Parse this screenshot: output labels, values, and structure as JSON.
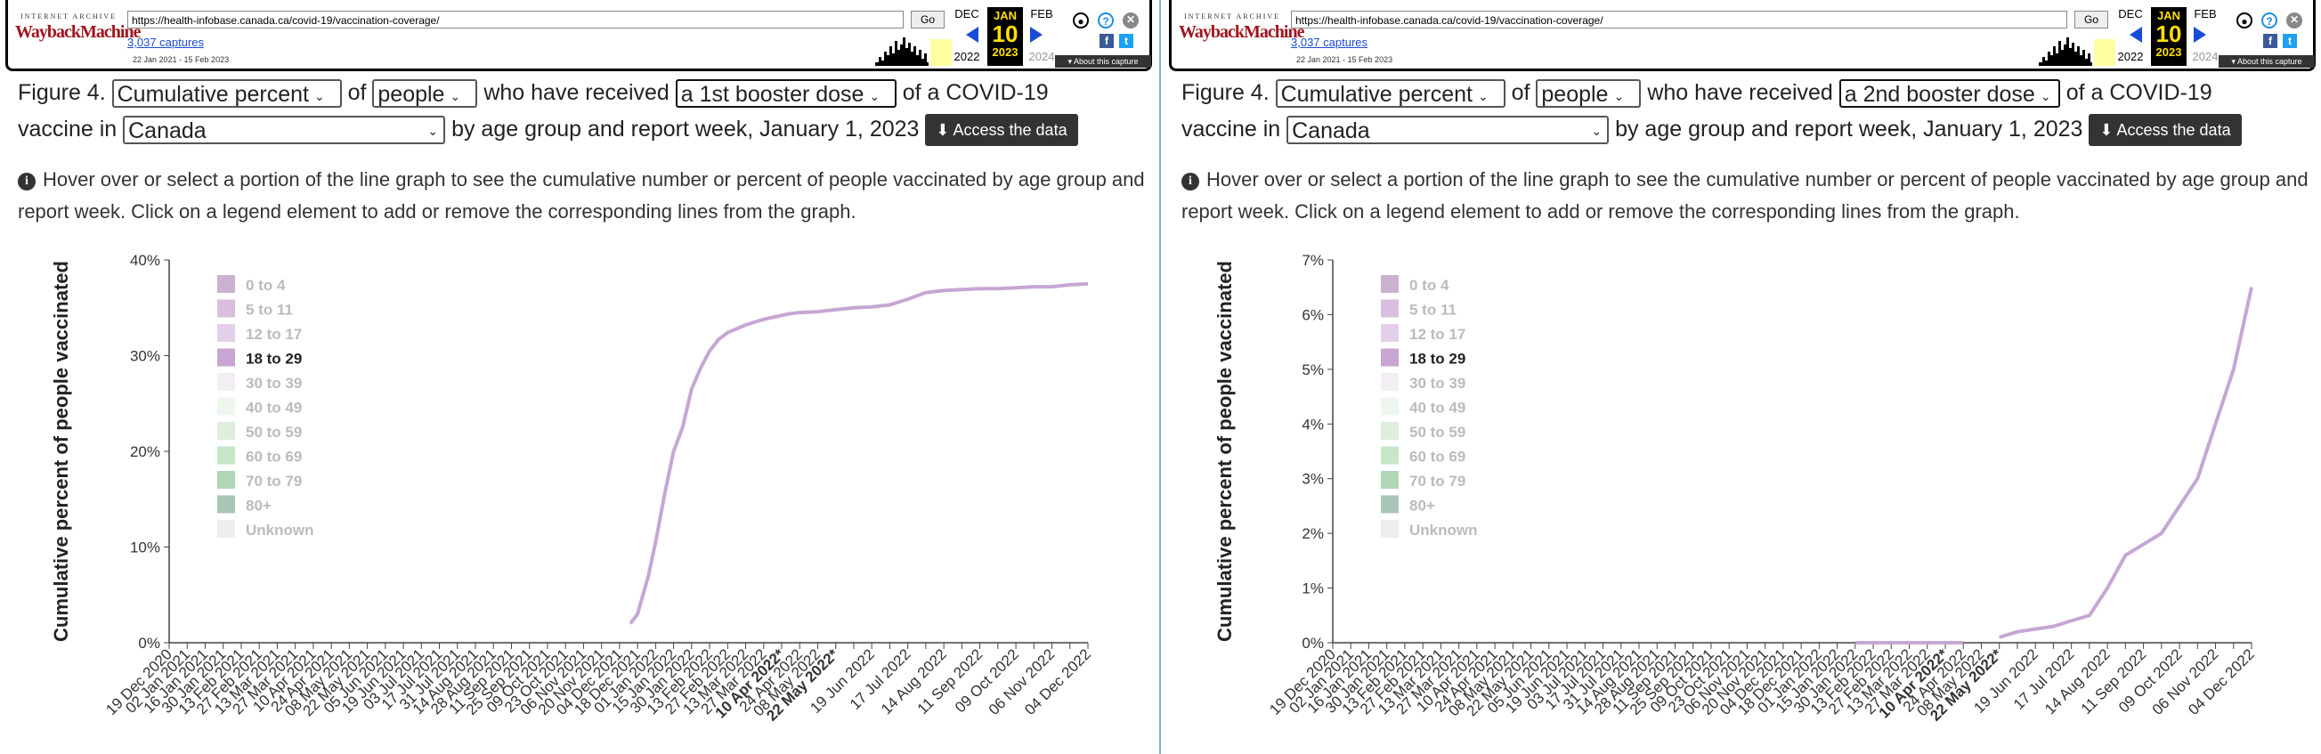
{
  "wayback": {
    "logo_top": "INTERNET ARCHIVE",
    "logo_main": "WaybackMachine",
    "url": "https://health-infobase.canada.ca/covid-19/vaccination-coverage/",
    "go_label": "Go",
    "captures": "3,037 captures",
    "range": "22 Jan 2021 - 15 Feb 2023",
    "prev_month": "DEC",
    "cur_month": "JAN",
    "next_month": "FEB",
    "cur_day": "10",
    "prev_year": "2022",
    "cur_year": "2023",
    "next_year": "2024",
    "about": "About this capture",
    "fb_icon": "facebook-icon",
    "tw_icon": "twitter-icon"
  },
  "figure": {
    "label": "Figure 4.",
    "measure": "Cumulative percent",
    "of_word": "of",
    "population": "people",
    "received_text": "who have received",
    "of_vaccine_text": "of a COVID-19",
    "vaccine_in": "vaccine in",
    "region": "Canada",
    "by_text": "by age group and report week, January 1, 2023",
    "access_button": "Access the data",
    "info_text": "Hover over or select a portion of the line graph to see the cumulative number or percent of people vaccinated by age group and report week. Click on a legend element to add or remove the corresponding lines from the graph."
  },
  "legend": [
    {
      "label": "0 to 4",
      "color": "#c9b3cf",
      "active": false
    },
    {
      "label": "5 to 11",
      "color": "#d8bfdf",
      "active": false
    },
    {
      "label": "12 to 17",
      "color": "#e4cfe8",
      "active": false
    },
    {
      "label": "18 to 29",
      "color": "#c7a6d3",
      "active": true
    },
    {
      "label": "30 to 39",
      "color": "#f3eef4",
      "active": false
    },
    {
      "label": "40 to 49",
      "color": "#eef6ee",
      "active": false
    },
    {
      "label": "50 to 59",
      "color": "#dcefdc",
      "active": false
    },
    {
      "label": "60 to 69",
      "color": "#c6e6c8",
      "active": false
    },
    {
      "label": "70 to 79",
      "color": "#b0d6b8",
      "active": false
    },
    {
      "label": "80+",
      "color": "#a8c6b6",
      "active": false
    },
    {
      "label": "Unknown",
      "color": "#eeeeee",
      "active": false
    }
  ],
  "colors": {
    "line": "#c7a6d3",
    "axis": "#444",
    "legend_active_text": "#222",
    "legend_inactive_text": "#bbb"
  },
  "chart_data": [
    {
      "type": "line",
      "dose": "a 1st booster dose",
      "ylabel": "Cumulative percent of people vaccinated",
      "yunit": "%",
      "ylim": [
        0,
        40
      ],
      "yticks": [
        0,
        10,
        20,
        30,
        40
      ],
      "x_labels": [
        "19 Dec 2020",
        "02 Jan 2021",
        "16 Jan 2021",
        "30 Jan 2021",
        "13 Feb 2021",
        "27 Feb 2021",
        "13 Mar 2021",
        "27 Mar 2021",
        "10 Apr 2021",
        "24 Apr 2021",
        "08 May 2021",
        "22 May 2021",
        "05 Jun 2021",
        "19 Jun 2021",
        "03 Jul 2021",
        "17 Jul 2021",
        "31 Jul 2021",
        "14 Aug 2021",
        "28 Aug 2021",
        "11 Sep 2021",
        "25 Sep 2021",
        "09 Oct 2021",
        "23 Oct 2021",
        "06 Nov 2021",
        "20 Nov 2021",
        "04 Dec 2021",
        "18 Dec 2021",
        "01 Jan 2022",
        "15 Jan 2022",
        "30 Jan 2022",
        "13 Feb 2022",
        "27 Feb 2022",
        "13 Mar 2022",
        "27 Mar 2022",
        "10 Apr 2022*",
        "24 Apr 2022",
        "08 May 2022",
        "22 May 2022*",
        "19 Jun 2022",
        "17 Jul 2022",
        "14 Aug 2022",
        "11 Sep 2022",
        "09 Oct 2022",
        "06 Nov 2022",
        "04 Dec 2022"
      ],
      "x_label_pos": [
        0,
        1,
        2,
        3,
        4,
        5,
        6,
        7,
        8,
        9,
        10,
        11,
        12,
        13,
        14,
        15,
        16,
        17,
        18,
        19,
        20,
        21,
        22,
        23,
        24,
        25,
        26,
        27,
        28,
        29,
        30,
        31,
        32,
        33,
        34,
        35,
        36,
        37,
        39,
        41,
        43,
        45,
        47,
        49,
        51
      ],
      "bold_labels": [
        "10 Apr 2022*",
        "22 May 2022*"
      ],
      "x_ticks_total": 52,
      "series": [
        {
          "name": "18 to 29",
          "segments": [
            [
              [
                25.6,
                2.0
              ],
              [
                26.0,
                3.0
              ],
              [
                26.6,
                7.0
              ],
              [
                27.0,
                10.5
              ],
              [
                27.5,
                15.5
              ],
              [
                28.0,
                20.0
              ],
              [
                28.5,
                22.5
              ],
              [
                29.0,
                26.5
              ],
              [
                29.5,
                28.7
              ],
              [
                30.0,
                30.5
              ],
              [
                30.5,
                31.7
              ],
              [
                31.0,
                32.4
              ],
              [
                31.5,
                32.8
              ],
              [
                32.0,
                33.2
              ],
              [
                32.5,
                33.5
              ],
              [
                33.0,
                33.8
              ],
              [
                33.5,
                34.0
              ],
              [
                34.0,
                34.2
              ],
              [
                34.5,
                34.4
              ],
              [
                35.0,
                34.5
              ],
              [
                36.0,
                34.6
              ],
              [
                37.0,
                34.8
              ],
              [
                38.0,
                35.0
              ],
              [
                39.0,
                35.1
              ],
              [
                40.0,
                35.3
              ],
              [
                41.0,
                35.9
              ],
              [
                42.0,
                36.6
              ],
              [
                43.0,
                36.8
              ],
              [
                44.0,
                36.9
              ],
              [
                45.0,
                37.0
              ],
              [
                46.0,
                37.0
              ],
              [
                47.0,
                37.1
              ],
              [
                48.0,
                37.2
              ],
              [
                49.0,
                37.2
              ],
              [
                50.0,
                37.4
              ],
              [
                51.0,
                37.5
              ]
            ]
          ]
        }
      ]
    },
    {
      "type": "line",
      "dose": "a 2nd booster dose",
      "ylabel": "Cumulative percent of people vaccinated",
      "yunit": "%",
      "ylim": [
        0,
        7
      ],
      "yticks": [
        0,
        1,
        2,
        3,
        4,
        5,
        6,
        7
      ],
      "x_labels": [
        "19 Dec 2020",
        "02 Jan 2021",
        "16 Jan 2021",
        "30 Jan 2021",
        "13 Feb 2021",
        "27 Feb 2021",
        "13 Mar 2021",
        "27 Mar 2021",
        "10 Apr 2021",
        "24 Apr 2021",
        "08 May 2021",
        "22 May 2021",
        "05 Jun 2021",
        "19 Jun 2021",
        "03 Jul 2021",
        "17 Jul 2021",
        "31 Jul 2021",
        "14 Aug 2021",
        "28 Aug 2021",
        "11 Sep 2021",
        "25 Sep 2021",
        "09 Oct 2021",
        "23 Oct 2021",
        "06 Nov 2021",
        "20 Nov 2021",
        "04 Dec 2021",
        "18 Dec 2021",
        "01 Jan 2022",
        "15 Jan 2022",
        "30 Jan 2022",
        "13 Feb 2022",
        "27 Feb 2022",
        "13 Mar 2022",
        "27 Mar 2022",
        "10 Apr 2022*",
        "24 Apr 2022",
        "08 May 2022",
        "22 May 2022*",
        "19 Jun 2022",
        "17 Jul 2022",
        "14 Aug 2022",
        "11 Sep 2022",
        "09 Oct 2022",
        "06 Nov 2022",
        "04 Dec 2022"
      ],
      "x_label_pos": [
        0,
        1,
        2,
        3,
        4,
        5,
        6,
        7,
        8,
        9,
        10,
        11,
        12,
        13,
        14,
        15,
        16,
        17,
        18,
        19,
        20,
        21,
        22,
        23,
        24,
        25,
        26,
        27,
        28,
        29,
        30,
        31,
        32,
        33,
        34,
        35,
        36,
        37,
        39,
        41,
        43,
        45,
        47,
        49,
        51
      ],
      "bold_labels": [
        "10 Apr 2022*",
        "22 May 2022*"
      ],
      "x_ticks_total": 52,
      "series": [
        {
          "name": "18 to 29",
          "segments": [
            [
              [
                29.0,
                0.0
              ],
              [
                30.0,
                0.0
              ],
              [
                31.0,
                0.0
              ],
              [
                32.0,
                0.0
              ],
              [
                33.0,
                0.0
              ],
              [
                34.0,
                0.0
              ],
              [
                35.0,
                0.0
              ]
            ],
            [
              [
                37.0,
                0.1
              ],
              [
                38.0,
                0.2
              ],
              [
                39.0,
                0.25
              ],
              [
                40.0,
                0.3
              ],
              [
                41.0,
                0.4
              ],
              [
                42.0,
                0.5
              ],
              [
                43.0,
                1.0
              ],
              [
                44.0,
                1.6
              ],
              [
                45.0,
                1.8
              ],
              [
                46.0,
                2.0
              ],
              [
                47.0,
                2.5
              ],
              [
                48.0,
                3.0
              ],
              [
                49.0,
                4.0
              ],
              [
                50.0,
                5.0
              ],
              [
                51.0,
                6.5
              ]
            ]
          ]
        }
      ]
    }
  ]
}
